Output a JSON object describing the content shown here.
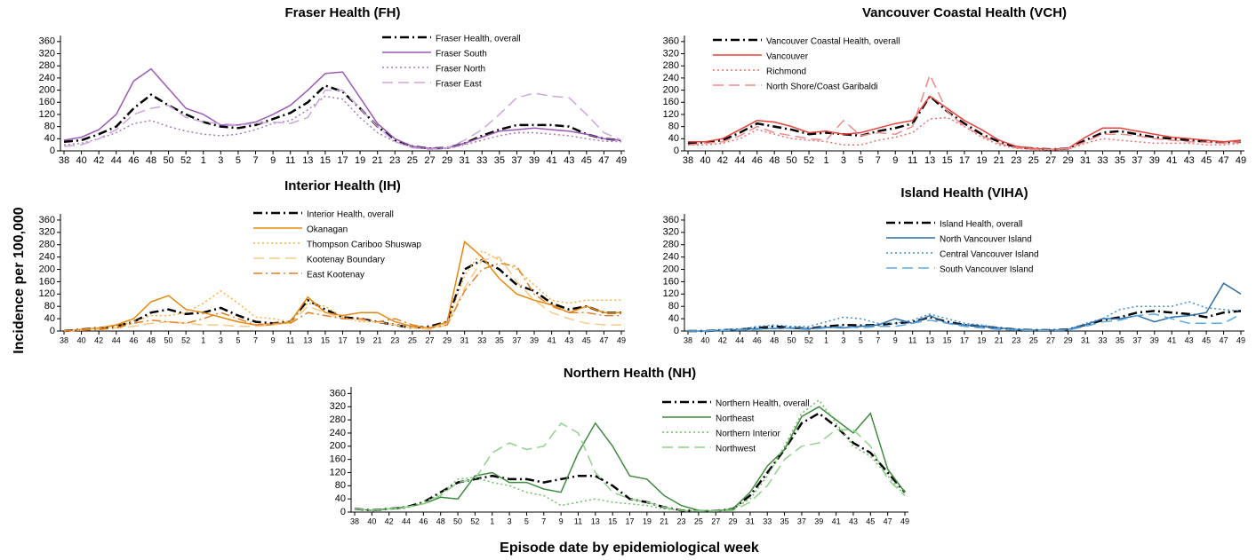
{
  "y_label": "Incidence per 100,000",
  "x_label": "Episode date by epidemiological week",
  "chart_data": [
    {
      "type": "line",
      "title": "Fraser Health (FH)",
      "categories": [
        38,
        40,
        42,
        44,
        46,
        48,
        50,
        52,
        1,
        3,
        5,
        7,
        9,
        11,
        13,
        15,
        17,
        19,
        21,
        23,
        25,
        27,
        29,
        31,
        33,
        35,
        37,
        39,
        41,
        43,
        45,
        47,
        49
      ],
      "ylim": [
        0,
        380
      ],
      "yticks": [
        0,
        40,
        80,
        120,
        160,
        200,
        240,
        280,
        320,
        360
      ],
      "series": [
        {
          "name": "Fraser Health, overall",
          "color": "#000000",
          "dash": "dashdot",
          "values": [
            30,
            35,
            55,
            80,
            140,
            185,
            150,
            120,
            95,
            80,
            75,
            85,
            105,
            125,
            160,
            215,
            195,
            140,
            80,
            35,
            15,
            8,
            10,
            25,
            50,
            70,
            85,
            85,
            85,
            80,
            55,
            40,
            35
          ]
        },
        {
          "name": "Fraser South",
          "color": "#9b59b6",
          "dash": "solid",
          "values": [
            35,
            45,
            70,
            120,
            230,
            270,
            205,
            140,
            120,
            85,
            85,
            95,
            120,
            150,
            200,
            255,
            260,
            175,
            90,
            40,
            15,
            8,
            10,
            25,
            45,
            65,
            70,
            75,
            70,
            65,
            55,
            40,
            35
          ]
        },
        {
          "name": "Fraser North",
          "color": "#a77bb8",
          "dash": "dotted",
          "values": [
            20,
            25,
            40,
            60,
            90,
            100,
            80,
            65,
            55,
            50,
            55,
            70,
            90,
            100,
            135,
            180,
            170,
            110,
            60,
            30,
            12,
            5,
            8,
            20,
            35,
            50,
            60,
            60,
            55,
            50,
            40,
            32,
            30
          ]
        },
        {
          "name": "Fraser East",
          "color": "#cda6dc",
          "dash": "dashed",
          "values": [
            15,
            20,
            40,
            70,
            120,
            140,
            150,
            110,
            95,
            90,
            85,
            90,
            95,
            90,
            110,
            200,
            200,
            140,
            80,
            30,
            10,
            5,
            10,
            35,
            70,
            120,
            175,
            190,
            180,
            175,
            120,
            60,
            35
          ]
        }
      ]
    },
    {
      "type": "line",
      "title": "Vancouver Coastal Health (VCH)",
      "categories": [
        38,
        40,
        42,
        44,
        46,
        48,
        50,
        52,
        1,
        3,
        5,
        7,
        9,
        11,
        13,
        15,
        17,
        19,
        21,
        23,
        25,
        27,
        29,
        31,
        33,
        35,
        37,
        39,
        41,
        43,
        45,
        47,
        49
      ],
      "ylim": [
        0,
        380
      ],
      "yticks": [
        0,
        40,
        80,
        120,
        160,
        200,
        240,
        280,
        320,
        360
      ],
      "series": [
        {
          "name": "Vancouver Coastal Health, overall",
          "color": "#000000",
          "dash": "dashdot",
          "values": [
            25,
            28,
            35,
            60,
            90,
            80,
            70,
            55,
            60,
            55,
            50,
            65,
            75,
            90,
            180,
            130,
            90,
            55,
            30,
            12,
            8,
            5,
            8,
            35,
            60,
            65,
            55,
            45,
            40,
            35,
            30,
            28,
            30
          ]
        },
        {
          "name": "Vancouver",
          "color": "#e8403a",
          "dash": "solid",
          "values": [
            30,
            30,
            40,
            70,
            100,
            95,
            80,
            60,
            65,
            55,
            60,
            75,
            90,
            100,
            180,
            140,
            100,
            70,
            35,
            15,
            8,
            5,
            8,
            45,
            75,
            75,
            65,
            55,
            45,
            40,
            35,
            30,
            35
          ]
        },
        {
          "name": "Richmond",
          "color": "#ee6f6f",
          "dash": "dotted",
          "values": [
            20,
            20,
            25,
            40,
            70,
            55,
            40,
            35,
            30,
            20,
            20,
            35,
            45,
            60,
            105,
            110,
            80,
            45,
            20,
            8,
            5,
            3,
            5,
            25,
            40,
            35,
            30,
            25,
            25,
            25,
            20,
            20,
            25
          ]
        },
        {
          "name": "North Shore/Coast Garibaldi",
          "color": "#f08a8a",
          "dash": "dashed",
          "values": [
            20,
            25,
            30,
            50,
            80,
            60,
            50,
            40,
            35,
            100,
            50,
            60,
            55,
            80,
            250,
            130,
            80,
            50,
            25,
            10,
            5,
            5,
            8,
            30,
            55,
            55,
            50,
            40,
            35,
            30,
            28,
            25,
            30
          ]
        }
      ]
    },
    {
      "type": "line",
      "title": "Interior Health (IH)",
      "categories": [
        38,
        40,
        42,
        44,
        46,
        48,
        50,
        52,
        1,
        3,
        5,
        7,
        9,
        11,
        13,
        15,
        17,
        19,
        21,
        23,
        25,
        27,
        29,
        31,
        33,
        35,
        37,
        39,
        41,
        43,
        45,
        47,
        49
      ],
      "ylim": [
        0,
        380
      ],
      "yticks": [
        0,
        40,
        80,
        120,
        160,
        200,
        240,
        280,
        320,
        360
      ],
      "series": [
        {
          "name": "Interior Health, overall",
          "color": "#000000",
          "dash": "dashdot",
          "values": [
            0,
            5,
            10,
            15,
            30,
            60,
            70,
            55,
            60,
            75,
            50,
            30,
            25,
            30,
            100,
            70,
            45,
            40,
            30,
            20,
            10,
            15,
            30,
            200,
            230,
            200,
            150,
            130,
            90,
            70,
            80,
            60,
            60
          ]
        },
        {
          "name": "Okanagan",
          "color": "#e8860b",
          "dash": "solid",
          "values": [
            0,
            5,
            10,
            20,
            40,
            95,
            115,
            70,
            60,
            45,
            30,
            20,
            20,
            30,
            110,
            60,
            50,
            60,
            60,
            30,
            15,
            10,
            30,
            290,
            240,
            170,
            120,
            100,
            85,
            60,
            80,
            60,
            60
          ]
        },
        {
          "name": "Thompson Cariboo Shuswap",
          "color": "#f5b041",
          "dash": "dotted",
          "values": [
            0,
            3,
            10,
            15,
            30,
            50,
            50,
            60,
            90,
            130,
            90,
            45,
            40,
            30,
            90,
            80,
            45,
            30,
            30,
            20,
            10,
            10,
            25,
            180,
            260,
            230,
            200,
            150,
            100,
            90,
            100,
            100,
            100
          ]
        },
        {
          "name": "Kootenay Boundary",
          "color": "#f8c98a",
          "dash": "dashed",
          "values": [
            0,
            3,
            5,
            10,
            15,
            25,
            30,
            25,
            20,
            20,
            15,
            15,
            20,
            25,
            80,
            60,
            40,
            35,
            30,
            20,
            10,
            5,
            20,
            140,
            230,
            240,
            160,
            100,
            60,
            40,
            25,
            20,
            20
          ]
        },
        {
          "name": "East Kootenay",
          "color": "#e67e22",
          "dash": "dashdot",
          "values": [
            0,
            3,
            5,
            10,
            25,
            35,
            30,
            25,
            40,
            60,
            40,
            20,
            25,
            25,
            60,
            50,
            40,
            40,
            30,
            40,
            20,
            10,
            20,
            130,
            200,
            220,
            210,
            120,
            80,
            60,
            60,
            50,
            50
          ]
        }
      ]
    },
    {
      "type": "line",
      "title": "Island Health (VIHA)",
      "categories": [
        38,
        40,
        42,
        44,
        46,
        48,
        50,
        52,
        1,
        3,
        5,
        7,
        9,
        11,
        13,
        15,
        17,
        19,
        21,
        23,
        25,
        27,
        29,
        31,
        33,
        35,
        37,
        39,
        41,
        43,
        45,
        47,
        49
      ],
      "ylim": [
        0,
        380
      ],
      "yticks": [
        0,
        40,
        80,
        120,
        160,
        200,
        240,
        280,
        320,
        360
      ],
      "series": [
        {
          "name": "Island Health, overall",
          "color": "#000000",
          "dash": "dashdot",
          "values": [
            0,
            0,
            3,
            5,
            10,
            15,
            10,
            8,
            15,
            20,
            18,
            20,
            25,
            30,
            45,
            30,
            20,
            15,
            10,
            5,
            3,
            3,
            5,
            20,
            35,
            45,
            60,
            65,
            60,
            55,
            45,
            60,
            65
          ]
        },
        {
          "name": "North Vancouver Island",
          "color": "#2e6da4",
          "dash": "solid",
          "values": [
            0,
            0,
            2,
            5,
            8,
            8,
            10,
            8,
            12,
            10,
            15,
            20,
            40,
            25,
            50,
            25,
            20,
            15,
            10,
            5,
            3,
            3,
            5,
            20,
            40,
            40,
            50,
            30,
            45,
            50,
            60,
            155,
            120
          ]
        },
        {
          "name": "Central Vancouver Island",
          "color": "#3d8fd6",
          "dash": "dotted",
          "values": [
            0,
            0,
            5,
            5,
            15,
            20,
            15,
            15,
            30,
            45,
            40,
            25,
            25,
            35,
            55,
            40,
            25,
            20,
            10,
            5,
            3,
            3,
            5,
            25,
            40,
            70,
            80,
            80,
            80,
            95,
            75,
            70,
            65
          ]
        },
        {
          "name": "South Vancouver Island",
          "color": "#5aa9e6",
          "dash": "dashed",
          "values": [
            0,
            0,
            2,
            3,
            5,
            10,
            8,
            5,
            10,
            15,
            10,
            15,
            15,
            25,
            35,
            25,
            15,
            10,
            5,
            3,
            2,
            2,
            3,
            15,
            30,
            35,
            50,
            55,
            40,
            25,
            25,
            25,
            55
          ]
        }
      ]
    },
    {
      "type": "line",
      "title": "Northern Health (NH)",
      "categories": [
        38,
        40,
        42,
        44,
        46,
        48,
        50,
        52,
        1,
        3,
        5,
        7,
        9,
        11,
        13,
        15,
        17,
        19,
        21,
        23,
        25,
        27,
        29,
        31,
        33,
        35,
        37,
        39,
        41,
        43,
        45,
        47,
        49
      ],
      "ylim": [
        0,
        380
      ],
      "yticks": [
        0,
        40,
        80,
        120,
        160,
        200,
        240,
        280,
        320,
        360
      ],
      "series": [
        {
          "name": "Northern Health, overall",
          "color": "#000000",
          "dash": "dashdot",
          "values": [
            10,
            5,
            10,
            15,
            30,
            60,
            90,
            100,
            110,
            100,
            100,
            90,
            100,
            110,
            110,
            80,
            40,
            30,
            15,
            5,
            3,
            3,
            10,
            50,
            120,
            190,
            270,
            300,
            260,
            210,
            180,
            120,
            60
          ]
        },
        {
          "name": "Northeast",
          "color": "#3d8b3d",
          "dash": "solid",
          "values": [
            10,
            5,
            10,
            15,
            25,
            45,
            40,
            110,
            120,
            90,
            90,
            70,
            60,
            180,
            270,
            200,
            110,
            100,
            50,
            20,
            5,
            3,
            10,
            60,
            140,
            190,
            290,
            320,
            280,
            240,
            300,
            130,
            60
          ]
        },
        {
          "name": "Northern Interior",
          "color": "#6abf5e",
          "dash": "dotted",
          "values": [
            10,
            5,
            8,
            12,
            30,
            55,
            100,
            105,
            90,
            80,
            60,
            50,
            20,
            30,
            40,
            30,
            25,
            20,
            10,
            5,
            3,
            3,
            10,
            40,
            110,
            200,
            300,
            340,
            270,
            200,
            170,
            110,
            50
          ]
        },
        {
          "name": "Northwest",
          "color": "#8fd18a",
          "dash": "dashed",
          "values": [
            10,
            5,
            10,
            15,
            25,
            50,
            90,
            100,
            180,
            210,
            190,
            200,
            270,
            240,
            120,
            60,
            40,
            30,
            15,
            5,
            3,
            3,
            5,
            30,
            80,
            160,
            200,
            210,
            250,
            250,
            200,
            100,
            50
          ]
        }
      ]
    }
  ]
}
